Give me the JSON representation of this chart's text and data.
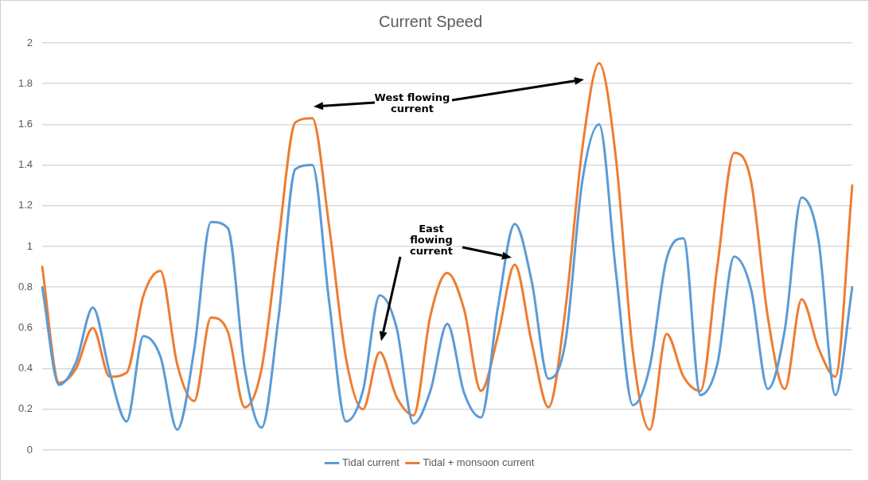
{
  "chart_data": {
    "type": "line",
    "title": "Current Speed",
    "categories": [
      null,
      null,
      null,
      null,
      null,
      null,
      null,
      null,
      null,
      null,
      null,
      null,
      null,
      null,
      null,
      null,
      null,
      null,
      null,
      null,
      null,
      null,
      null,
      null,
      null,
      null,
      null,
      null,
      null,
      null,
      null,
      null,
      null,
      null,
      null,
      null,
      null,
      null,
      null,
      null,
      null,
      null,
      null,
      null,
      null,
      null,
      null,
      null,
      null
    ],
    "series": [
      {
        "name": "Tidal current",
        "color": "#5b9bd5",
        "values": [
          0.8,
          0.32,
          0.43,
          0.7,
          0.38,
          0.14,
          0.56,
          0.46,
          0.1,
          0.49,
          1.12,
          1.09,
          0.4,
          0.11,
          0.65,
          1.38,
          1.4,
          0.73,
          0.14,
          0.29,
          0.76,
          0.6,
          0.13,
          0.29,
          0.62,
          0.28,
          0.16,
          0.7,
          1.11,
          0.83,
          0.35,
          0.53,
          1.32,
          1.6,
          0.87,
          0.22,
          0.41,
          0.94,
          1.04,
          0.27,
          0.42,
          0.95,
          0.79,
          0.3,
          0.59,
          1.24,
          1.03,
          0.27,
          0.8
        ]
      },
      {
        "name": "Tidal + monsoon current",
        "color": "#ed7d31",
        "values": [
          0.9,
          0.33,
          0.4,
          0.6,
          0.36,
          0.38,
          0.76,
          0.88,
          0.42,
          0.24,
          0.65,
          0.58,
          0.21,
          0.4,
          1.03,
          1.61,
          1.63,
          1.1,
          0.45,
          0.2,
          0.48,
          0.26,
          0.17,
          0.66,
          0.87,
          0.69,
          0.29,
          0.56,
          0.91,
          0.53,
          0.21,
          0.69,
          1.48,
          1.9,
          1.43,
          0.48,
          0.1,
          0.57,
          0.36,
          0.29,
          0.9,
          1.46,
          1.32,
          0.65,
          0.3,
          0.74,
          0.5,
          0.36,
          1.3
        ]
      }
    ],
    "ylim": [
      0,
      2
    ],
    "yticks": [
      0,
      0.2,
      0.4,
      0.6,
      0.8,
      1,
      1.2,
      1.4,
      1.6,
      1.8,
      2
    ],
    "grid": "y",
    "legend": "bottom",
    "tick_labels": "y",
    "marker": "none",
    "line_style": "solid",
    "annotations": [
      "West flowing current",
      "East flowing current"
    ]
  }
}
